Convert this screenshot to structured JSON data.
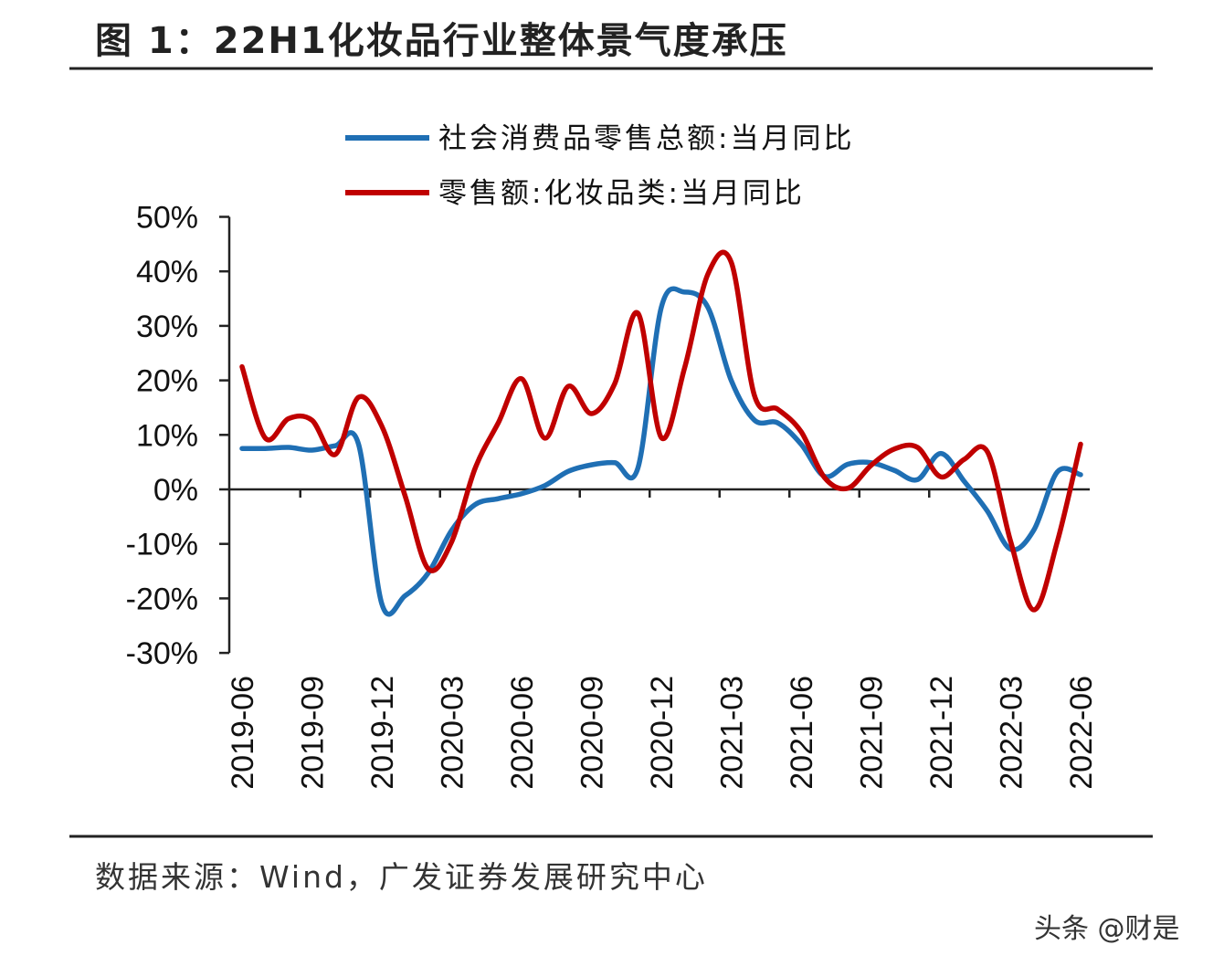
{
  "title": "图 1：22H1化妆品行业整体景气度承压",
  "source": "数据来源：Wind，广发证券发展研究中心",
  "watermark": "头条 @财是",
  "chart_data": {
    "type": "line",
    "title": "",
    "xlabel": "",
    "ylabel": "",
    "ylim": [
      -30,
      50
    ],
    "yticks": [
      "50%",
      "40%",
      "30%",
      "20%",
      "10%",
      "0%",
      "-10%",
      "-20%",
      "-30%"
    ],
    "ytick_values": [
      50,
      40,
      30,
      20,
      10,
      0,
      -10,
      -20,
      -30
    ],
    "x": [
      "2019-06",
      "2019-07",
      "2019-08",
      "2019-09",
      "2019-10",
      "2019-11",
      "2019-12",
      "2020-01",
      "2020-02",
      "2020-03",
      "2020-04",
      "2020-05",
      "2020-06",
      "2020-07",
      "2020-08",
      "2020-09",
      "2020-10",
      "2020-11",
      "2020-12",
      "2021-01",
      "2021-02",
      "2021-03",
      "2021-04",
      "2021-05",
      "2021-06",
      "2021-07",
      "2021-08",
      "2021-09",
      "2021-10",
      "2021-11",
      "2021-12",
      "2022-01",
      "2022-02",
      "2022-03",
      "2022-04",
      "2022-05",
      "2022-06"
    ],
    "xtick_labels": [
      "2019-06",
      "2019-09",
      "2019-12",
      "2020-03",
      "2020-06",
      "2020-09",
      "2020-12",
      "2021-03",
      "2021-06",
      "2021-09",
      "2021-12",
      "2022-03",
      "2022-06"
    ],
    "legend_position": "top",
    "grid": false,
    "series": [
      {
        "name": "社会消费品零售总额:当月同比",
        "color": "#1f6fb4",
        "values": [
          7.5,
          7.5,
          7.7,
          7.2,
          8.0,
          8.3,
          -21.0,
          -19.5,
          -15.3,
          -7.5,
          -2.8,
          -1.7,
          -0.8,
          0.7,
          3.3,
          4.5,
          4.9,
          4.0,
          33.4,
          36.2,
          33.4,
          20.0,
          12.7,
          12.2,
          8.3,
          2.4,
          4.6,
          4.9,
          3.5,
          1.8,
          6.6,
          1.5,
          -4.0,
          -11.0,
          -7.4,
          3.2,
          2.7
        ]
      },
      {
        "name": "零售额:化妆品类:当月同比",
        "color": "#c00000",
        "values": [
          22.5,
          9.4,
          13.0,
          12.7,
          6.4,
          16.9,
          11.6,
          -1.2,
          -14.6,
          -9.6,
          3.8,
          12.2,
          20.3,
          9.4,
          18.9,
          13.9,
          19.4,
          32.3,
          9.5,
          22.3,
          39.5,
          41.7,
          17.2,
          14.7,
          10.6,
          2.2,
          0.2,
          4.4,
          7.4,
          7.7,
          2.3,
          5.5,
          6.9,
          -9.6,
          -22.1,
          -9.6,
          8.3
        ]
      }
    ]
  }
}
